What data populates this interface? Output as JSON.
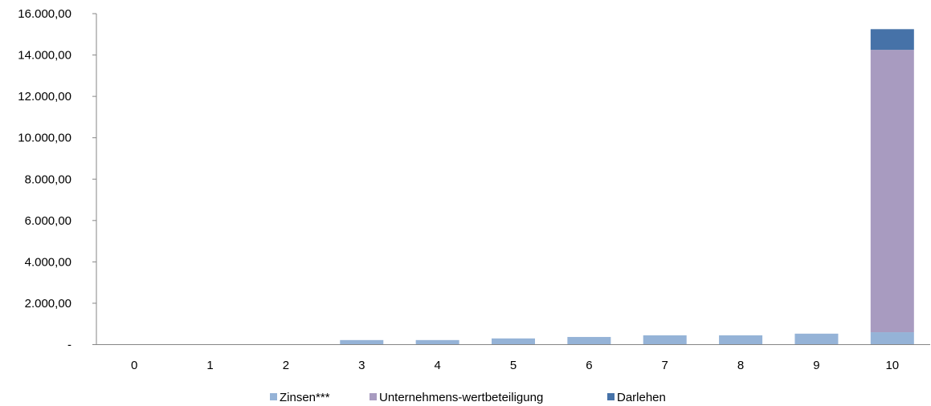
{
  "chart_data": {
    "type": "bar",
    "stacked": true,
    "categories": [
      "0",
      "1",
      "2",
      "3",
      "4",
      "5",
      "6",
      "7",
      "8",
      "9",
      "10"
    ],
    "series": [
      {
        "name": "Zinsen***",
        "color": "#95B3D7",
        "values": [
          0,
          0,
          0,
          220,
          220,
          300,
          370,
          450,
          450,
          530,
          600
        ]
      },
      {
        "name": "Unternehmens-wertbeteiligung",
        "color": "#A89BC0",
        "values": [
          0,
          0,
          0,
          0,
          0,
          0,
          0,
          0,
          0,
          0,
          13650
        ]
      },
      {
        "name": "Darlehen",
        "color": "#4672A8",
        "values": [
          0,
          0,
          0,
          0,
          0,
          0,
          0,
          0,
          0,
          0,
          1000
        ]
      }
    ],
    "yticks": [
      "-",
      "2.000,00",
      "4.000,00",
      "6.000,00",
      "8.000,00",
      "10.000,00",
      "12.000,00",
      "14.000,00",
      "16.000,00"
    ],
    "ylim": [
      0,
      16000
    ],
    "grid": false,
    "legend_position": "bottom"
  }
}
